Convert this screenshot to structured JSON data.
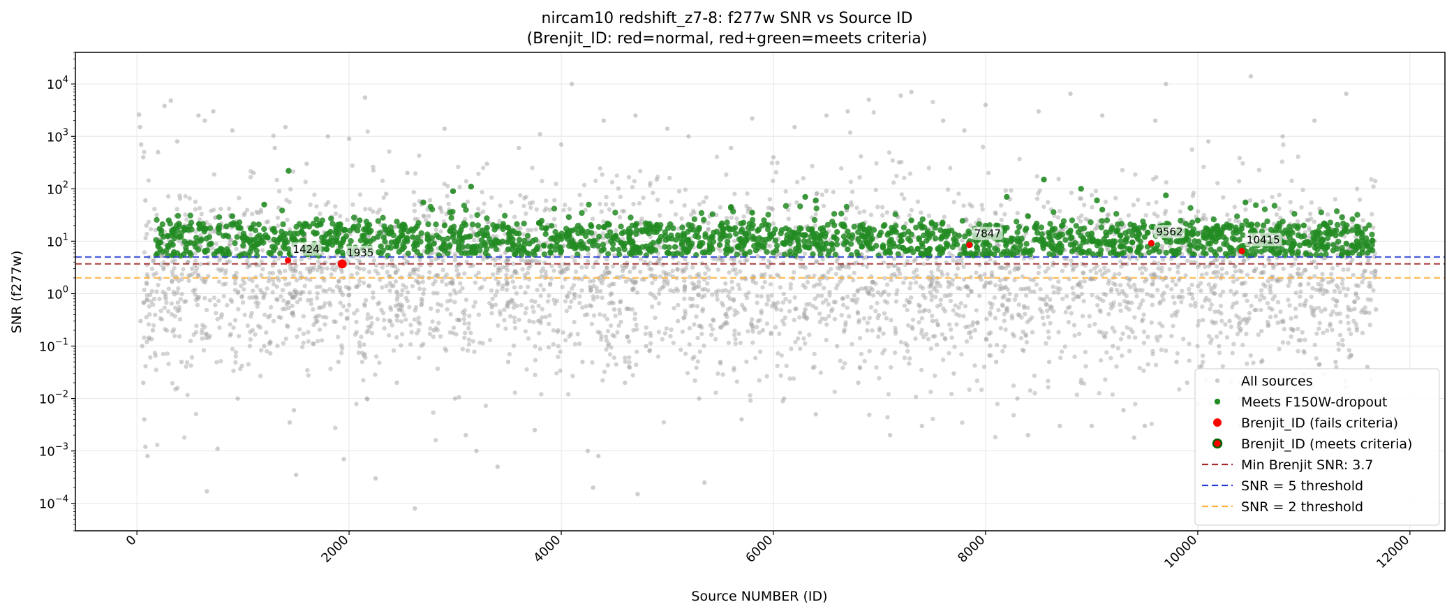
{
  "chart_data": {
    "type": "scatter",
    "title": "nircam10 redshift_z7-8: f277w SNR vs Source ID",
    "subtitle": "(Brenjit_ID: red=normal, red+green=meets criteria)",
    "xlabel": "Source NUMBER (ID)",
    "ylabel": "SNR (f277w)",
    "xlim": [
      -580,
      12330
    ],
    "ylim": [
      3e-05,
      40000
    ],
    "y_scale": "log",
    "grid": true,
    "x_ticks": [
      0,
      2000,
      4000,
      6000,
      8000,
      10000,
      12000
    ],
    "x_tick_labels": [
      "0",
      "2000",
      "4000",
      "6000",
      "8000",
      "10000",
      "12000"
    ],
    "y_ticks": [
      0.0001,
      0.001,
      0.01,
      0.1,
      1,
      10,
      100,
      1000,
      10000
    ],
    "y_tick_bases": [
      "10",
      "10",
      "10",
      "10",
      "10",
      "10",
      "10",
      "10",
      "10"
    ],
    "y_tick_exponents": [
      "−4",
      "−3",
      "−2",
      "−1",
      "0",
      "1",
      "2",
      "3",
      "4"
    ],
    "legend_position": "lower-right",
    "legend": [
      {
        "label": "All sources",
        "marker": "dot",
        "color": "#a6a6a6"
      },
      {
        "label": "Meets F150W-dropout",
        "marker": "dot",
        "color": "#228b22"
      },
      {
        "label": "Brenjit_ID (fails criteria)",
        "marker": "dot",
        "color": "#ff0000"
      },
      {
        "label": "Brenjit_ID (meets criteria)",
        "marker": "dot-ring",
        "color": "#ff0000",
        "edge": "#006400"
      },
      {
        "label": "Min Brenjit SNR: 3.7",
        "marker": "dashed-line",
        "color": "#a52a2a"
      },
      {
        "label": "SNR = 5 threshold",
        "marker": "dashed-line",
        "color": "#2b3fd6"
      },
      {
        "label": "SNR = 2 threshold",
        "marker": "dashed-line",
        "color": "#ffb13b"
      }
    ],
    "hlines": [
      {
        "name": "Min Brenjit SNR: 3.7",
        "y": 3.7,
        "color": "#a52a2a"
      },
      {
        "name": "SNR = 5 threshold",
        "y": 5,
        "color": "#2b3fd6"
      },
      {
        "name": "SNR = 2 threshold",
        "y": 2,
        "color": "#ffb13b"
      }
    ],
    "series": [
      {
        "name": "All sources",
        "color": "#9e9e9e",
        "points": [
          [
            20,
            2600
          ],
          [
            30,
            1500
          ],
          [
            40,
            700
          ],
          [
            60,
            400
          ],
          [
            80,
            60
          ],
          [
            90,
            20
          ],
          [
            35,
            0.3
          ],
          [
            50,
            0.1
          ],
          [
            60,
            0.02
          ],
          [
            70,
            0.004
          ],
          [
            80,
            0.0012
          ],
          [
            100,
            0.0008
          ],
          [
            150,
            0.2
          ],
          [
            200,
            500
          ],
          [
            260,
            3800
          ],
          [
            320,
            4800
          ],
          [
            380,
            800
          ],
          [
            420,
            0.05
          ],
          [
            450,
            20
          ],
          [
            520,
            3
          ],
          [
            580,
            2500
          ],
          [
            640,
            2000
          ],
          [
            660,
            0.00017
          ],
          [
            720,
            3000
          ],
          [
            760,
            0.0011
          ],
          [
            800,
            0.4
          ],
          [
            900,
            1300
          ],
          [
            950,
            0.01
          ],
          [
            1100,
            200
          ],
          [
            1200,
            0.1
          ],
          [
            1300,
            600
          ],
          [
            1400,
            1500
          ],
          [
            1440,
            0.0035
          ],
          [
            1480,
            0.006
          ],
          [
            1500,
            0.00035
          ],
          [
            1600,
            300
          ],
          [
            1700,
            0.3
          ],
          [
            1800,
            1000
          ],
          [
            1900,
            0.05
          ],
          [
            1950,
            0.0007
          ],
          [
            2000,
            900
          ],
          [
            2100,
            3
          ],
          [
            2150,
            5500
          ],
          [
            2250,
            0.0003
          ],
          [
            2350,
            80
          ],
          [
            2450,
            0.02
          ],
          [
            2550,
            200
          ],
          [
            2620,
            8e-05
          ],
          [
            2700,
            1
          ],
          [
            2800,
            0.2
          ],
          [
            2900,
            1400
          ],
          [
            3000,
            0.01
          ],
          [
            3100,
            0.002
          ],
          [
            3200,
            0.001
          ],
          [
            3300,
            300
          ],
          [
            3400,
            0.0005
          ],
          [
            3500,
            0.05
          ],
          [
            3600,
            600
          ],
          [
            3700,
            0.3
          ],
          [
            3750,
            0.0025
          ],
          [
            3800,
            1100
          ],
          [
            3900,
            20
          ],
          [
            4000,
            700
          ],
          [
            4100,
            10000
          ],
          [
            4200,
            0.05
          ],
          [
            4250,
            0.001
          ],
          [
            4300,
            0.0002
          ],
          [
            4350,
            0.0008
          ],
          [
            4400,
            2000
          ],
          [
            4500,
            0.5
          ],
          [
            4600,
            0.02
          ],
          [
            4700,
            2500
          ],
          [
            4720,
            0.00015
          ],
          [
            4800,
            0.1
          ],
          [
            4900,
            150
          ],
          [
            5000,
            1400
          ],
          [
            5100,
            0.3
          ],
          [
            5200,
            1000
          ],
          [
            5300,
            0.01
          ],
          [
            5350,
            0.00025
          ],
          [
            5400,
            30
          ],
          [
            5500,
            0.05
          ],
          [
            5600,
            600
          ],
          [
            5700,
            0.004
          ],
          [
            5800,
            2200
          ],
          [
            5900,
            0.2
          ],
          [
            6000,
            400
          ],
          [
            6100,
            0.01
          ],
          [
            6200,
            1500
          ],
          [
            6300,
            0.5
          ],
          [
            6400,
            0.005
          ],
          [
            6500,
            2500
          ],
          [
            6600,
            0.1
          ],
          [
            6700,
            3000
          ],
          [
            6800,
            0.02
          ],
          [
            6900,
            5000
          ],
          [
            7000,
            0.2
          ],
          [
            7100,
            0.002
          ],
          [
            7200,
            6000
          ],
          [
            7300,
            7000
          ],
          [
            7400,
            0.003
          ],
          [
            7500,
            0.3
          ],
          [
            7600,
            2000
          ],
          [
            7700,
            0.03
          ],
          [
            7800,
            1300
          ],
          [
            7900,
            0.2
          ],
          [
            8000,
            4000
          ],
          [
            8100,
            0.05
          ],
          [
            8200,
            0.5
          ],
          [
            8300,
            0.01
          ],
          [
            8400,
            0.002
          ],
          [
            8500,
            3000
          ],
          [
            8600,
            0.05
          ],
          [
            8700,
            0.003
          ],
          [
            8800,
            6500
          ],
          [
            8900,
            0.02
          ],
          [
            9000,
            0.003
          ],
          [
            9100,
            2500
          ],
          [
            9200,
            0.1
          ],
          [
            9300,
            0.006
          ],
          [
            9400,
            0.0018
          ],
          [
            9500,
            0.003
          ],
          [
            9600,
            2000
          ],
          [
            9700,
            10000
          ],
          [
            9800,
            0.05
          ],
          [
            9900,
            0.02
          ],
          [
            10000,
            0.008
          ],
          [
            10100,
            800
          ],
          [
            10200,
            0.1
          ],
          [
            10300,
            0.3
          ],
          [
            10400,
            0.01
          ],
          [
            10500,
            14000
          ],
          [
            10600,
            0.05
          ],
          [
            10700,
            0.5
          ],
          [
            10800,
            1000
          ],
          [
            10900,
            0.2
          ],
          [
            11000,
            0.03
          ],
          [
            11100,
            2000
          ],
          [
            11200,
            0.5
          ],
          [
            11300,
            0.05
          ],
          [
            11400,
            6500
          ],
          [
            11500,
            0.2
          ],
          [
            11600,
            0.04
          ],
          [
            11680,
            0.5
          ]
        ]
      },
      {
        "name": "Meets F150W-dropout",
        "color": "#228b22",
        "points": [
          [
            200,
            8
          ],
          [
            300,
            25
          ],
          [
            400,
            12
          ],
          [
            500,
            6
          ],
          [
            600,
            18
          ],
          [
            700,
            9
          ],
          [
            800,
            7
          ],
          [
            900,
            30
          ],
          [
            1000,
            12
          ],
          [
            1100,
            8
          ],
          [
            1200,
            50
          ],
          [
            1300,
            15
          ],
          [
            1430,
            220
          ],
          [
            1500,
            10
          ],
          [
            1600,
            7
          ],
          [
            1700,
            20
          ],
          [
            1800,
            9
          ],
          [
            1900,
            14
          ],
          [
            2000,
            6
          ],
          [
            2100,
            25
          ],
          [
            2200,
            10
          ],
          [
            2300,
            8
          ],
          [
            2400,
            15
          ],
          [
            2500,
            7
          ],
          [
            2600,
            12
          ],
          [
            2700,
            55
          ],
          [
            2800,
            9
          ],
          [
            2900,
            20
          ],
          [
            2980,
            90
          ],
          [
            3100,
            12
          ],
          [
            3150,
            110
          ],
          [
            3200,
            8
          ],
          [
            3300,
            18
          ],
          [
            3400,
            10
          ],
          [
            3500,
            7
          ],
          [
            3600,
            14
          ],
          [
            3700,
            9
          ],
          [
            3800,
            22
          ],
          [
            3900,
            6
          ],
          [
            4000,
            11
          ],
          [
            4100,
            8
          ],
          [
            4200,
            16
          ],
          [
            4300,
            10
          ],
          [
            4400,
            7
          ],
          [
            4500,
            12
          ],
          [
            4600,
            9
          ],
          [
            4700,
            20
          ],
          [
            4800,
            8
          ],
          [
            4900,
            15
          ],
          [
            5000,
            6
          ],
          [
            5100,
            13
          ],
          [
            5200,
            9
          ],
          [
            5300,
            18
          ],
          [
            5400,
            7
          ],
          [
            5500,
            11
          ],
          [
            5600,
            45
          ],
          [
            5700,
            10
          ],
          [
            5800,
            35
          ],
          [
            5900,
            8
          ],
          [
            6000,
            14
          ],
          [
            6100,
            9
          ],
          [
            6200,
            12
          ],
          [
            6300,
            70
          ],
          [
            6400,
            60
          ],
          [
            6500,
            9
          ],
          [
            6600,
            15
          ],
          [
            6700,
            7
          ],
          [
            6800,
            11
          ],
          [
            6900,
            8
          ],
          [
            7000,
            13
          ],
          [
            7100,
            6
          ],
          [
            7200,
            10
          ],
          [
            7300,
            25
          ],
          [
            7400,
            9
          ],
          [
            7500,
            14
          ],
          [
            7600,
            7
          ],
          [
            7700,
            11
          ],
          [
            7800,
            8
          ],
          [
            7900,
            12
          ],
          [
            8000,
            9
          ],
          [
            8100,
            20
          ],
          [
            8200,
            70
          ],
          [
            8300,
            10
          ],
          [
            8400,
            30
          ],
          [
            8550,
            150
          ],
          [
            8600,
            12
          ],
          [
            8700,
            9
          ],
          [
            8800,
            16
          ],
          [
            8900,
            100
          ],
          [
            9000,
            14
          ],
          [
            9050,
            60
          ],
          [
            9100,
            40
          ],
          [
            9200,
            10
          ],
          [
            9300,
            8
          ],
          [
            9400,
            20
          ],
          [
            9500,
            12
          ],
          [
            9700,
            75
          ],
          [
            9800,
            10
          ],
          [
            9900,
            14
          ],
          [
            10000,
            25
          ],
          [
            10100,
            9
          ],
          [
            10200,
            12
          ],
          [
            10300,
            18
          ],
          [
            10450,
            55
          ],
          [
            10500,
            15
          ],
          [
            10600,
            10
          ],
          [
            10700,
            8
          ],
          [
            10800,
            14
          ],
          [
            10900,
            9
          ],
          [
            11000,
            20
          ],
          [
            11100,
            11
          ],
          [
            11200,
            7
          ],
          [
            11300,
            13
          ],
          [
            11400,
            9
          ],
          [
            11500,
            10
          ],
          [
            11600,
            8
          ]
        ]
      },
      {
        "name": "Brenjit_ID (fails criteria)",
        "color": "#ff0000",
        "points": [
          [
            1424,
            4.3
          ],
          [
            1935,
            3.7
          ],
          [
            7847,
            8.5
          ],
          [
            9562,
            9.2
          ],
          [
            10415,
            6.5
          ]
        ]
      }
    ],
    "annotations": [
      {
        "label": "1424",
        "x": 1424,
        "y": 4.3
      },
      {
        "label": "1935",
        "x": 1935,
        "y": 3.7
      },
      {
        "label": "7847",
        "x": 7847,
        "y": 8.5
      },
      {
        "label": "9562",
        "x": 9562,
        "y": 9.2
      },
      {
        "label": "10415",
        "x": 10415,
        "y": 6.5
      }
    ]
  }
}
